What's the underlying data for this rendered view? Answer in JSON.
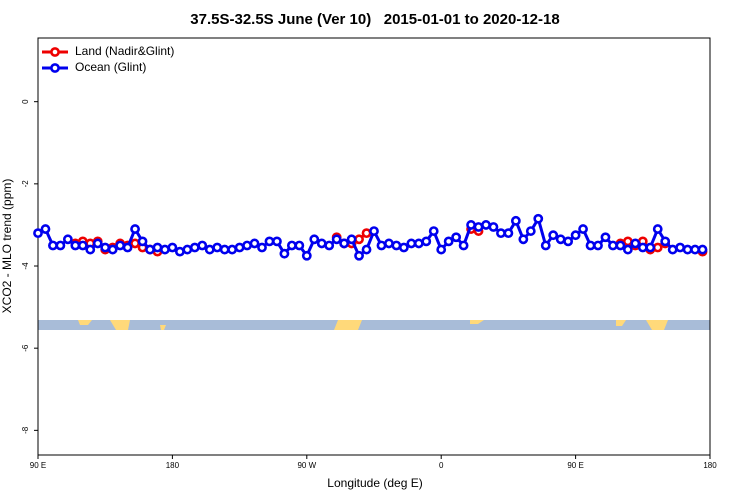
{
  "chart_data": {
    "type": "line",
    "title": "37.5S-32.5S June (Ver 10)   2015-01-01 to 2020-12-18",
    "xlabel": "Longitude (deg E)",
    "ylabel": "XCO2 - MLO trend (ppm)",
    "xlim": [
      90,
      540
    ],
    "ylim": [
      -8.6,
      1.55
    ],
    "xticks": [
      {
        "value": 90,
        "label": "90 E"
      },
      180,
      {
        "value": 270,
        "label": "90 W"
      },
      {
        "value": 360,
        "label": "0"
      },
      {
        "value": 450,
        "label": "90 E"
      },
      {
        "value": 540,
        "label": "180"
      }
    ],
    "yticks": [
      0,
      -2,
      -4,
      -6,
      -8
    ],
    "legend": "top-left",
    "x": [
      90,
      95,
      100,
      105,
      110,
      115,
      120,
      125,
      130,
      135,
      140,
      145,
      150,
      155,
      160,
      165,
      170,
      175,
      180,
      185,
      190,
      195,
      200,
      205,
      210,
      215,
      220,
      225,
      230,
      235,
      240,
      245,
      250,
      255,
      260,
      265,
      270,
      275,
      280,
      285,
      290,
      295,
      300,
      305,
      310,
      315,
      320,
      325,
      330,
      335,
      340,
      345,
      350,
      355,
      360,
      365,
      370,
      375,
      380,
      385,
      390,
      395,
      400,
      405,
      410,
      415,
      420,
      425,
      430,
      435,
      440,
      445,
      450,
      455,
      460,
      465,
      470,
      475,
      480,
      485,
      490,
      495,
      500,
      505,
      510,
      515,
      520,
      525,
      530,
      535
    ],
    "series": [
      {
        "name": "Land (Nadir&Glint)",
        "color": "#ee0000",
        "values": [
          null,
          null,
          null,
          null,
          null,
          -3.45,
          -3.4,
          -3.45,
          -3.4,
          -3.6,
          -3.55,
          -3.45,
          -3.5,
          -3.45,
          -3.55,
          -3.6,
          -3.65,
          null,
          null,
          null,
          null,
          null,
          null,
          null,
          null,
          null,
          null,
          null,
          null,
          null,
          null,
          null,
          null,
          null,
          null,
          null,
          null,
          null,
          null,
          null,
          -3.3,
          -3.45,
          -3.45,
          -3.35,
          -3.2,
          null,
          null,
          null,
          null,
          null,
          null,
          null,
          null,
          null,
          null,
          null,
          null,
          null,
          -3.1,
          -3.15,
          null,
          null,
          null,
          null,
          null,
          null,
          null,
          null,
          null,
          null,
          null,
          null,
          null,
          null,
          null,
          null,
          null,
          null,
          -3.45,
          -3.4,
          -3.5,
          -3.4,
          -3.6,
          -3.55,
          -3.45,
          null,
          null,
          null,
          null,
          -3.65
        ]
      },
      {
        "name": "Ocean (Glint)",
        "color": "#0000ee",
        "values": [
          -3.2,
          -3.1,
          -3.5,
          -3.5,
          -3.35,
          -3.5,
          -3.5,
          -3.6,
          -3.45,
          -3.55,
          -3.6,
          -3.5,
          -3.55,
          -3.1,
          -3.4,
          -3.6,
          -3.55,
          -3.6,
          -3.55,
          -3.65,
          -3.6,
          -3.55,
          -3.5,
          -3.6,
          -3.55,
          -3.6,
          -3.6,
          -3.55,
          -3.5,
          -3.45,
          -3.55,
          -3.4,
          -3.4,
          -3.7,
          -3.5,
          -3.5,
          -3.75,
          -3.35,
          -3.45,
          -3.5,
          -3.35,
          -3.45,
          -3.35,
          -3.75,
          -3.6,
          -3.15,
          -3.5,
          -3.45,
          -3.5,
          -3.55,
          -3.45,
          -3.45,
          -3.4,
          -3.15,
          -3.6,
          -3.4,
          -3.3,
          -3.5,
          -3.0,
          -3.05,
          -3.0,
          -3.05,
          -3.2,
          -3.2,
          -2.9,
          -3.35,
          -3.15,
          -2.85,
          -3.5,
          -3.25,
          -3.35,
          -3.4,
          -3.25,
          -3.1,
          -3.5,
          -3.5,
          -3.3,
          -3.5,
          -3.5,
          -3.6,
          -3.45,
          -3.55,
          -3.55,
          -3.1,
          -3.4,
          -3.6,
          -3.55,
          -3.6,
          -3.6,
          -3.6
        ]
      }
    ]
  }
}
